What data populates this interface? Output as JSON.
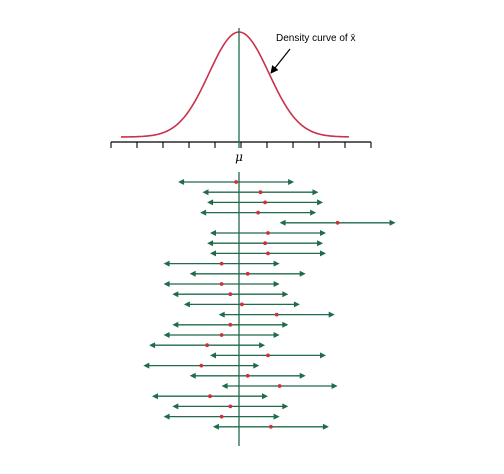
{
  "annotation": "Density curve of x̄",
  "axis_label": "μ",
  "colors": {
    "curve": "#c8324a",
    "interval": "#1f6b4a",
    "estimate": "#d0303a",
    "axis": "#000000"
  },
  "chart_data": {
    "type": "diagram",
    "curve": "normal density of the sample mean, centered at the true mean",
    "axis_ticks": 10,
    "intervals": [
      {
        "center": -0.05,
        "half_width": 1.0
      },
      {
        "center": 0.37,
        "half_width": 1.0
      },
      {
        "center": 0.45,
        "half_width": 1.0
      },
      {
        "center": 0.33,
        "half_width": 1.0
      },
      {
        "center": 1.7,
        "half_width": 1.0
      },
      {
        "center": 0.5,
        "half_width": 1.0
      },
      {
        "center": 0.45,
        "half_width": 1.0
      },
      {
        "center": 0.5,
        "half_width": 1.0
      },
      {
        "center": -0.3,
        "half_width": 1.0
      },
      {
        "center": 0.15,
        "half_width": 1.0
      },
      {
        "center": -0.3,
        "half_width": 1.0
      },
      {
        "center": -0.15,
        "half_width": 1.0
      },
      {
        "center": 0.05,
        "half_width": 1.0
      },
      {
        "center": 0.65,
        "half_width": 1.0
      },
      {
        "center": -0.15,
        "half_width": 1.0
      },
      {
        "center": -0.3,
        "half_width": 1.0
      },
      {
        "center": -0.55,
        "half_width": 1.0
      },
      {
        "center": 0.5,
        "half_width": 1.0
      },
      {
        "center": -0.65,
        "half_width": 1.0
      },
      {
        "center": 0.15,
        "half_width": 1.0
      },
      {
        "center": 0.7,
        "half_width": 1.0
      },
      {
        "center": -0.5,
        "half_width": 1.0
      },
      {
        "center": -0.15,
        "half_width": 1.0
      },
      {
        "center": -0.3,
        "half_width": 1.0
      },
      {
        "center": 0.55,
        "half_width": 1.0
      }
    ]
  }
}
